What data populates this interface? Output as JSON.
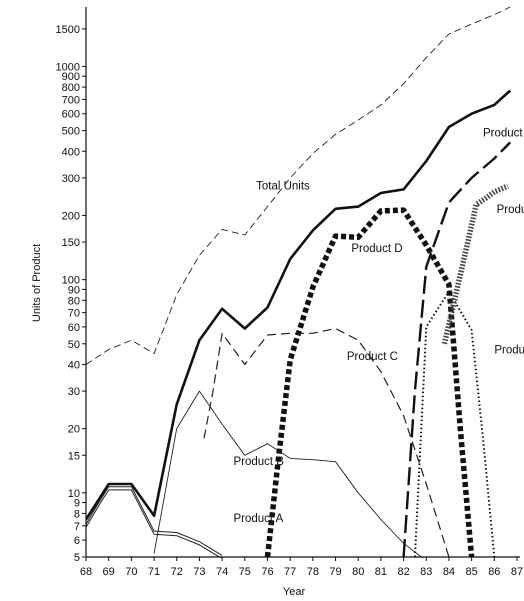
{
  "chart_data": {
    "type": "line",
    "xlabel": "Year",
    "ylabel": "Units of Product",
    "y_scale": "log",
    "xlim": [
      68,
      87
    ],
    "ylim": [
      5,
      1900
    ],
    "grid": false,
    "x_ticks": [
      "68",
      "69",
      "70",
      "71",
      "72",
      "73",
      "74",
      "75",
      "76",
      "77",
      "78",
      "79",
      "80",
      "81",
      "82",
      "83",
      "84",
      "85",
      "86",
      "87"
    ],
    "y_ticks": [
      {
        "value": 5,
        "label": "5"
      },
      {
        "value": 6,
        "label": "6"
      },
      {
        "value": 7,
        "label": "7"
      },
      {
        "value": 8,
        "label": "8"
      },
      {
        "value": 9,
        "label": "9"
      },
      {
        "value": 10,
        "label": "10"
      },
      {
        "value": 15,
        "label": "15"
      },
      {
        "value": 20,
        "label": "20"
      },
      {
        "value": 30,
        "label": "30"
      },
      {
        "value": 40,
        "label": "40"
      },
      {
        "value": 50,
        "label": "50"
      },
      {
        "value": 60,
        "label": "60"
      },
      {
        "value": 70,
        "label": "70"
      },
      {
        "value": 80,
        "label": "80"
      },
      {
        "value": 90,
        "label": "90"
      },
      {
        "value": 100,
        "label": "100"
      },
      {
        "value": 150,
        "label": "150"
      },
      {
        "value": 200,
        "label": "200"
      },
      {
        "value": 300,
        "label": "300"
      },
      {
        "value": 400,
        "label": "400"
      },
      {
        "value": 500,
        "label": "500"
      },
      {
        "value": 600,
        "label": "600"
      },
      {
        "value": 700,
        "label": "700"
      },
      {
        "value": 800,
        "label": "800"
      },
      {
        "value": 900,
        "label": "900"
      },
      {
        "value": 1000,
        "label": "1000"
      },
      {
        "value": 1500,
        "label": "1500"
      }
    ],
    "series": [
      {
        "key": "total_units",
        "name": "Total Units",
        "style": "thin-dashed",
        "color": "#222222",
        "x": [
          68,
          69,
          70,
          71,
          72,
          73,
          74,
          75,
          76,
          77,
          78,
          79,
          80,
          81,
          82,
          83,
          84,
          85,
          86,
          86.7
        ],
        "y": [
          40,
          47,
          52,
          45,
          85,
          130,
          172,
          162,
          220,
          300,
          390,
          480,
          560,
          660,
          830,
          1100,
          1420,
          1580,
          1750,
          1900
        ]
      },
      {
        "key": "product_a",
        "name": "Product A",
        "style": "double-thin",
        "color": "#222222",
        "x": [
          68,
          68.6,
          69,
          70,
          71,
          72,
          73,
          74
        ],
        "y": [
          7,
          9,
          10.5,
          10.5,
          6.5,
          6.4,
          5.8,
          5.0
        ]
      },
      {
        "key": "product_b",
        "name": "Product B",
        "style": "thin",
        "color": "#222222",
        "x": [
          71,
          72,
          73,
          74,
          75,
          76,
          77,
          78,
          79,
          80,
          81,
          82,
          83
        ],
        "y": [
          5.2,
          20,
          30,
          21,
          15,
          17,
          14.5,
          14.3,
          14,
          10,
          7.5,
          5.8,
          4.8
        ]
      },
      {
        "key": "product_c",
        "name": "Product C",
        "style": "dashed",
        "color": "#222222",
        "x": [
          73.2,
          73.6,
          74,
          75,
          76,
          77,
          78,
          79,
          80,
          81,
          82,
          83,
          84
        ],
        "y": [
          18,
          30,
          56,
          40,
          55,
          56,
          56,
          59,
          52,
          37,
          23,
          11,
          5
        ]
      },
      {
        "key": "product_d",
        "name": "Product D",
        "style": "heavy-dashed",
        "color": "#111111",
        "x": [
          76,
          76.5,
          77,
          78,
          79,
          80,
          81,
          82,
          83,
          84,
          84.5,
          85
        ],
        "y": [
          5,
          15,
          42,
          92,
          160,
          158,
          210,
          212,
          145,
          95,
          20,
          5
        ]
      },
      {
        "key": "product_e",
        "name": "Product",
        "style": "bold",
        "color": "#111111",
        "x": [
          68,
          69,
          70,
          71,
          72,
          73,
          74,
          75,
          76,
          77,
          78,
          79,
          80,
          81,
          82,
          83,
          84,
          85,
          86,
          86.7
        ],
        "y": [
          7.5,
          11,
          11,
          7.8,
          26,
          52,
          73,
          59,
          74,
          125,
          170,
          215,
          220,
          255,
          265,
          360,
          520,
          600,
          660,
          770
        ]
      },
      {
        "key": "product_f",
        "name": "Product",
        "style": "long-dash",
        "color": "#111111",
        "x": [
          82,
          82.5,
          83,
          84,
          85,
          86,
          86.7
        ],
        "y": [
          5,
          30,
          115,
          230,
          300,
          370,
          440
        ]
      },
      {
        "key": "product_g",
        "name": "Produc",
        "style": "dotted",
        "color": "#111111",
        "x": [
          82.5,
          83,
          84,
          85,
          85.5,
          86
        ],
        "y": [
          5,
          60,
          88,
          58,
          18,
          5
        ]
      },
      {
        "key": "product_h",
        "name": "Produc",
        "style": "hatched",
        "color": "#444444",
        "x": [
          83.8,
          84.3,
          84.8,
          85.2,
          85.6,
          86,
          86.6
        ],
        "y": [
          50,
          85,
          145,
          225,
          240,
          258,
          275
        ]
      }
    ],
    "series_labels": [
      {
        "series": "total_units",
        "text": "Total Units",
        "at_x": 75.5,
        "at_y": 265
      },
      {
        "series": "product_b",
        "text": "Product B",
        "at_x": 74.5,
        "at_y": 13.5
      },
      {
        "series": "product_a",
        "text": "Product A",
        "at_x": 74.5,
        "at_y": 7.3
      },
      {
        "series": "product_c",
        "text": "Product C",
        "at_x": 79.5,
        "at_y": 42
      },
      {
        "series": "product_d",
        "text": "Product D",
        "at_x": 79.7,
        "at_y": 135
      },
      {
        "series": "product_e",
        "text": "Product",
        "at_x": 85.5,
        "at_y": 470
      },
      {
        "series": "product_h",
        "text": "Produc",
        "at_x": 86.1,
        "at_y": 205
      },
      {
        "series": "product_g",
        "text": "Product",
        "at_x": 86.0,
        "at_y": 45
      }
    ]
  }
}
